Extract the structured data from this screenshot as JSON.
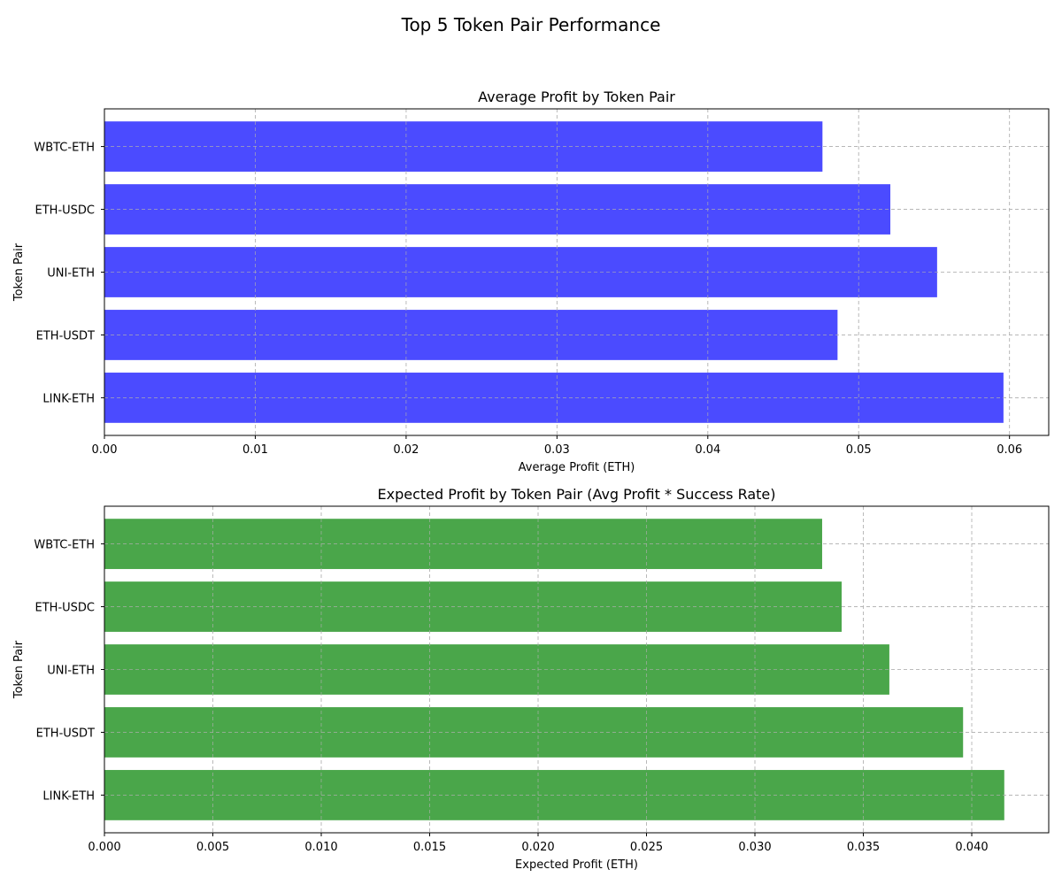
{
  "figure": {
    "title": "Top 5 Token Pair Performance"
  },
  "chart_data": [
    {
      "type": "bar",
      "orientation": "horizontal",
      "title": "Average Profit by Token Pair",
      "xlabel": "Average Profit (ETH)",
      "ylabel": "Token Pair",
      "categories": [
        "LINK-ETH",
        "ETH-USDT",
        "UNI-ETH",
        "ETH-USDC",
        "WBTC-ETH"
      ],
      "values": [
        0.0596,
        0.0486,
        0.0552,
        0.0521,
        0.0476
      ],
      "xlim": [
        0,
        0.0626
      ],
      "xticks": [
        0.0,
        0.01,
        0.02,
        0.03,
        0.04,
        0.05,
        0.06
      ],
      "xtick_labels": [
        "0.00",
        "0.01",
        "0.02",
        "0.03",
        "0.04",
        "0.05",
        "0.06"
      ],
      "color": "#4b4bff",
      "grid": true
    },
    {
      "type": "bar",
      "orientation": "horizontal",
      "title": "Expected Profit by Token Pair (Avg Profit * Success Rate)",
      "xlabel": "Expected Profit (ETH)",
      "ylabel": "Token Pair",
      "categories": [
        "LINK-ETH",
        "ETH-USDT",
        "UNI-ETH",
        "ETH-USDC",
        "WBTC-ETH"
      ],
      "values": [
        0.0415,
        0.0396,
        0.0362,
        0.034,
        0.0331
      ],
      "xlim": [
        0,
        0.04355
      ],
      "xticks": [
        0.0,
        0.005,
        0.01,
        0.015,
        0.02,
        0.025,
        0.03,
        0.035,
        0.04
      ],
      "xtick_labels": [
        "0.000",
        "0.005",
        "0.010",
        "0.015",
        "0.020",
        "0.025",
        "0.030",
        "0.035",
        "0.040"
      ],
      "color": "#4aa64a",
      "grid": true
    }
  ]
}
